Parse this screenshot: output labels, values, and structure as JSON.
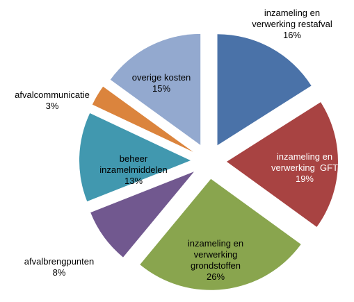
{
  "chart_data": {
    "type": "pie",
    "categories": [
      "inzameling en\nverwerking restafval",
      "inzameling en\nverwerking  GFT",
      "inzameling en\nverwerking\ngrondstoffen",
      "afvalbrengpunten",
      "beheer\ninzamelmiddelen",
      "afvalcommunicatie",
      "overige kosten"
    ],
    "values": [
      16,
      19,
      26,
      8,
      13,
      3,
      15
    ],
    "value_labels": [
      "16%",
      "19%",
      "26%",
      "8%",
      "13%",
      "3%",
      "15%"
    ],
    "colors": [
      "#4a72a8",
      "#a84342",
      "#89a54e",
      "#71588f",
      "#4198af",
      "#db843d",
      "#93a9cf"
    ]
  }
}
